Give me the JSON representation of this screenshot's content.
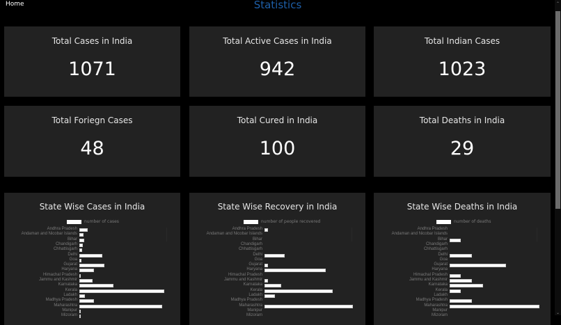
{
  "nav": {
    "home_label": "Home"
  },
  "header": {
    "title": "Statistics",
    "title_color": "#1e5fa8"
  },
  "stats": [
    {
      "label": "Total Cases in India",
      "value": "1071"
    },
    {
      "label": "Total Active Cases in India",
      "value": "942"
    },
    {
      "label": "Total Indian Cases",
      "value": "1023"
    },
    {
      "label": "Total Foriegn Cases",
      "value": "48"
    },
    {
      "label": "Total Cured in India",
      "value": "100"
    },
    {
      "label": "Total Deaths in India",
      "value": "29"
    }
  ],
  "charts": [
    {
      "title": "State Wise Cases in India",
      "legend": "number of cases"
    },
    {
      "title": "State Wise Recovery in India",
      "legend": "number of people recovered"
    },
    {
      "title": "State Wise Deaths in India",
      "legend": "number of deaths"
    }
  ],
  "chart_data": [
    {
      "type": "bar",
      "orientation": "horizontal",
      "title": "State Wise Cases in India",
      "legend": [
        "number of cases"
      ],
      "categories": [
        "Andhra Pradesh",
        "Andaman and Nicobar Islands",
        "Bihar",
        "Chandigarh",
        "Chhattisgarh",
        "Delhi",
        "Goa",
        "Gujarat",
        "Haryana",
        "Himachal Pradesh",
        "Jammu and Kashmir",
        "Karnataka",
        "Kerala",
        "Ladakh",
        "Madhya Pradesh",
        "Maharashtra",
        "Manipur",
        "Mizoram"
      ],
      "values": [
        20,
        10,
        11,
        8,
        7,
        54,
        5,
        60,
        34,
        3,
        31,
        81,
        202,
        13,
        34,
        198,
        1,
        1
      ]
    },
    {
      "type": "bar",
      "orientation": "horizontal",
      "title": "State Wise Recovery in India",
      "legend": [
        "number of people recovered"
      ],
      "categories": [
        "Andhra Pradesh",
        "Andaman and Nicobar Islands",
        "Bihar",
        "Chandigarh",
        "Chhattisgarh",
        "Delhi",
        "Goa",
        "Gujarat",
        "Haryana",
        "Himachal Pradesh",
        "Jammu and Kashmir",
        "Karnataka",
        "Kerala",
        "Ladakh",
        "Madhya Pradesh",
        "Maharashtra",
        "Manipur",
        "Mizoram"
      ],
      "values": [
        1,
        0,
        0,
        0,
        0,
        6,
        0,
        1,
        18,
        0,
        1,
        5,
        20,
        3,
        0,
        26,
        0,
        0
      ]
    },
    {
      "type": "bar",
      "orientation": "horizontal",
      "title": "State Wise Deaths in India",
      "legend": [
        "number of deaths"
      ],
      "categories": [
        "Andhra Pradesh",
        "Andaman and Nicobar Islands",
        "Bihar",
        "Chandigarh",
        "Chhattisgarh",
        "Delhi",
        "Goa",
        "Gujarat",
        "Haryana",
        "Himachal Pradesh",
        "Jammu and Kashmir",
        "Karnataka",
        "Kerala",
        "Ladakh",
        "Madhya Pradesh",
        "Maharashtra",
        "Manipur",
        "Mizoram"
      ],
      "values": [
        0,
        0,
        1,
        0,
        0,
        2,
        0,
        5,
        0,
        1,
        2,
        3,
        1,
        0,
        2,
        8,
        0,
        0
      ]
    }
  ]
}
